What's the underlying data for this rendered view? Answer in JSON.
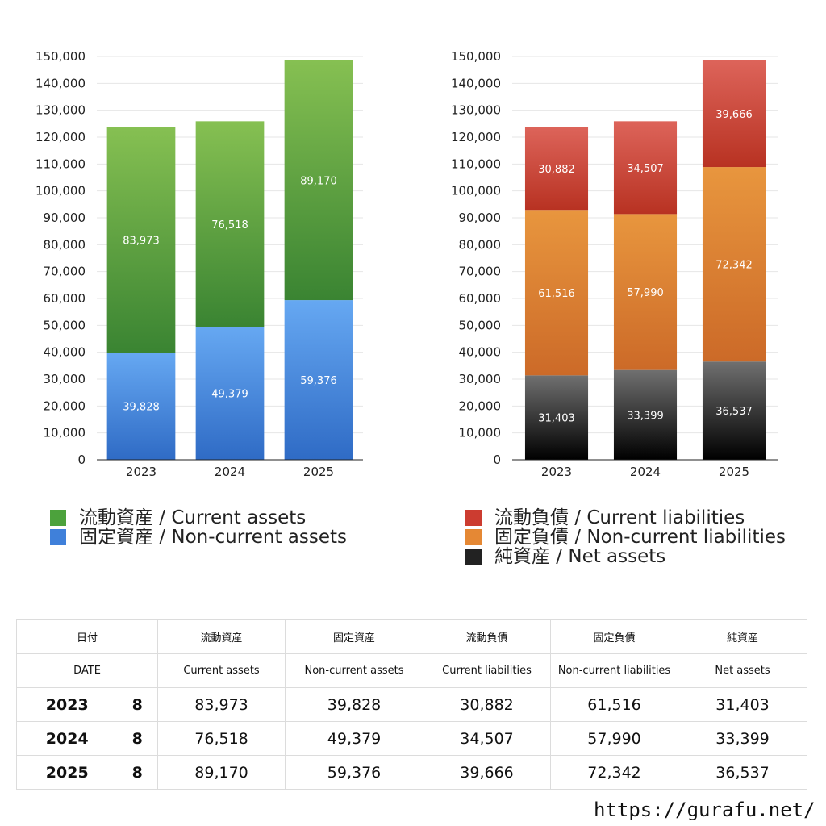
{
  "chart_data": [
    {
      "type": "bar",
      "stacked": true,
      "categories": [
        "2023",
        "2024",
        "2025"
      ],
      "ylim": [
        0,
        150000
      ],
      "ytick_step": 10000,
      "grid": true,
      "legend_position": "bottom",
      "series": [
        {
          "name": "固定資産 / Non-current assets",
          "values": [
            39828,
            49379,
            59376
          ],
          "color_top": "#66a8f2",
          "color_bottom": "#2f6bc5"
        },
        {
          "name": "流動資産 / Current assets",
          "values": [
            83973,
            76518,
            89170
          ],
          "color_top": "#86c052",
          "color_bottom": "#3a8432"
        }
      ]
    },
    {
      "type": "bar",
      "stacked": true,
      "categories": [
        "2023",
        "2024",
        "2025"
      ],
      "ylim": [
        0,
        150000
      ],
      "ytick_step": 10000,
      "grid": true,
      "legend_position": "bottom",
      "series": [
        {
          "name": "純資産 / Net assets",
          "values": [
            31403,
            33399,
            36537
          ],
          "color_top": "#707070",
          "color_bottom": "#000000"
        },
        {
          "name": "固定負債 / Non-current liabilities",
          "values": [
            61516,
            57990,
            72342
          ],
          "color_top": "#e8963e",
          "color_bottom": "#cc6a28"
        },
        {
          "name": "流動負債 / Current liabilities",
          "values": [
            30882,
            34507,
            39666
          ],
          "color_top": "#dd645a",
          "color_bottom": "#b83222"
        }
      ]
    }
  ],
  "legends": {
    "assets": [
      {
        "label": "流動資産 / Current assets",
        "color": "#4ca23c"
      },
      {
        "label": "固定資産 / Non-current assets",
        "color": "#3f80da"
      }
    ],
    "liabilities": [
      {
        "label": "流動負債 / Current liabilities",
        "color": "#cc3c30"
      },
      {
        "label": "固定負債 / Non-current liabilities",
        "color": "#e58834"
      },
      {
        "label": "純資産 / Net assets",
        "color": "#222222"
      }
    ]
  },
  "table": {
    "headers_jp": [
      "日付",
      "流動資産",
      "固定資産",
      "流動負債",
      "固定負債",
      "純資産"
    ],
    "headers_en": [
      "DATE",
      "Current assets",
      "Non-current assets",
      "Current liabilities",
      "Non-current liabilities",
      "Net assets"
    ],
    "rows": [
      {
        "year": "2023",
        "month": "8",
        "values": [
          "83,973",
          "39,828",
          "30,882",
          "61,516",
          "31,403"
        ]
      },
      {
        "year": "2024",
        "month": "8",
        "values": [
          "76,518",
          "49,379",
          "34,507",
          "57,990",
          "33,399"
        ]
      },
      {
        "year": "2025",
        "month": "8",
        "values": [
          "89,170",
          "59,376",
          "39,666",
          "72,342",
          "36,537"
        ]
      }
    ]
  },
  "footer": {
    "url": "https://gurafu.net/"
  }
}
